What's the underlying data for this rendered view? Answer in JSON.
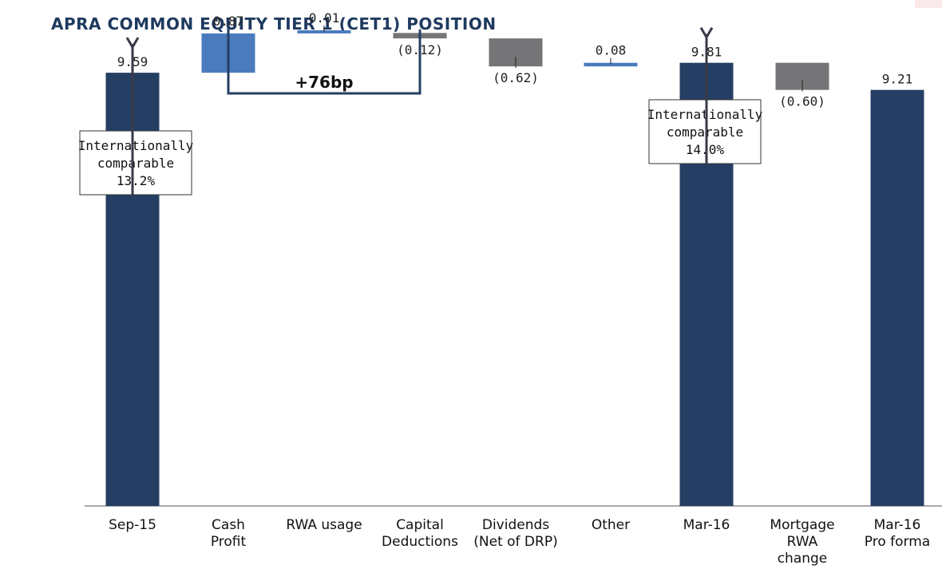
{
  "title": "APRA COMMON EQUITY TIER 1 (CET1) POSITION",
  "colors": {
    "total": "#243f63",
    "increase": "#4a7bbd",
    "decrease": "#757578",
    "bracket": "#243f63"
  },
  "chart_data": {
    "type": "bar",
    "subtype": "waterfall",
    "categories": [
      [
        "Sep-15"
      ],
      [
        "Cash",
        "Profit"
      ],
      [
        "RWA usage"
      ],
      [
        "Capital",
        "Deductions"
      ],
      [
        "Dividends",
        "(Net of DRP)"
      ],
      [
        "Other"
      ],
      [
        "Mar-16"
      ],
      [
        "Mortgage",
        "RWA",
        "change"
      ],
      [
        "Mar-16",
        "Pro forma"
      ]
    ],
    "values": [
      9.59,
      0.87,
      0.01,
      -0.12,
      -0.62,
      0.08,
      9.81,
      -0.6,
      9.21
    ],
    "kinds": [
      "total",
      "increase",
      "increase",
      "decrease",
      "decrease",
      "increase",
      "total",
      "decrease",
      "total"
    ],
    "data_labels": [
      "9.59",
      "0.87",
      "0.01",
      "(0.12)",
      "(0.62)",
      "0.08",
      "9.81",
      "(0.60)",
      "9.21"
    ],
    "ylim": [
      0,
      11.2
    ],
    "grid": false,
    "bracket": {
      "label": "+76bp",
      "from_index": 1,
      "to_index": 3
    },
    "annotations": [
      {
        "index": 0,
        "lines": [
          "Internationally",
          "comparable",
          "13.2%"
        ]
      },
      {
        "index": 6,
        "lines": [
          "Internationally",
          "comparable",
          "14.0%"
        ]
      }
    ]
  }
}
